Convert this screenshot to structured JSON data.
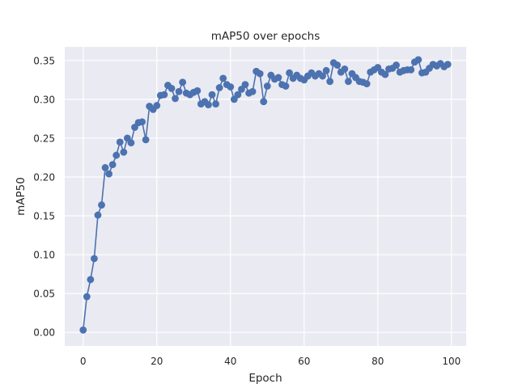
{
  "chart_data": {
    "type": "line",
    "title": "mAP50 over epochs",
    "xlabel": "Epoch",
    "ylabel": "mAP50",
    "xlim": [
      -5,
      104
    ],
    "ylim": [
      -0.0175,
      0.3675
    ],
    "xticks": [
      0,
      20,
      40,
      60,
      80,
      100
    ],
    "yticks": [
      0.0,
      0.05,
      0.1,
      0.15,
      0.2,
      0.25,
      0.3,
      0.35
    ],
    "ytick_labels": [
      "0.00",
      "0.05",
      "0.10",
      "0.15",
      "0.20",
      "0.25",
      "0.30",
      "0.35"
    ],
    "grid": true,
    "legend": "none",
    "style": {
      "background": "#eaeaf2",
      "line_color": "#4c72b0",
      "grid_color": "#ffffff"
    },
    "series": [
      {
        "x": [
          0,
          1,
          2,
          3,
          4,
          5,
          6,
          7,
          8,
          9,
          10,
          11,
          12,
          13,
          14,
          15,
          16,
          17,
          18,
          19,
          20,
          21,
          22,
          23,
          24,
          25,
          26,
          27,
          28,
          29,
          30,
          31,
          32,
          33,
          34,
          35,
          36,
          37,
          38,
          39,
          40,
          41,
          42,
          43,
          44,
          45,
          46,
          47,
          48,
          49,
          50,
          51,
          52,
          53,
          54,
          55,
          56,
          57,
          58,
          59,
          60,
          61,
          62,
          63,
          64,
          65,
          66,
          67,
          68,
          69,
          70,
          71,
          72,
          73,
          74,
          75,
          76,
          77,
          78,
          79,
          80,
          81,
          82,
          83,
          84,
          85,
          86,
          87,
          88,
          89,
          90,
          91,
          92,
          93,
          94,
          95,
          96,
          97,
          98,
          99
        ],
        "values": [
          0.003,
          0.046,
          0.068,
          0.095,
          0.151,
          0.164,
          0.212,
          0.204,
          0.216,
          0.228,
          0.245,
          0.232,
          0.25,
          0.244,
          0.264,
          0.27,
          0.271,
          0.248,
          0.291,
          0.287,
          0.292,
          0.305,
          0.306,
          0.318,
          0.314,
          0.301,
          0.31,
          0.322,
          0.308,
          0.306,
          0.309,
          0.311,
          0.294,
          0.297,
          0.293,
          0.306,
          0.294,
          0.315,
          0.327,
          0.319,
          0.316,
          0.3,
          0.306,
          0.313,
          0.319,
          0.308,
          0.31,
          0.336,
          0.333,
          0.297,
          0.317,
          0.331,
          0.326,
          0.328,
          0.319,
          0.317,
          0.334,
          0.327,
          0.331,
          0.327,
          0.325,
          0.33,
          0.334,
          0.33,
          0.333,
          0.33,
          0.337,
          0.323,
          0.347,
          0.344,
          0.335,
          0.339,
          0.323,
          0.333,
          0.328,
          0.323,
          0.322,
          0.32,
          0.335,
          0.338,
          0.341,
          0.335,
          0.332,
          0.339,
          0.34,
          0.344,
          0.335,
          0.337,
          0.338,
          0.338,
          0.348,
          0.351,
          0.334,
          0.335,
          0.34,
          0.345,
          0.343,
          0.346,
          0.342,
          0.345
        ]
      }
    ]
  }
}
